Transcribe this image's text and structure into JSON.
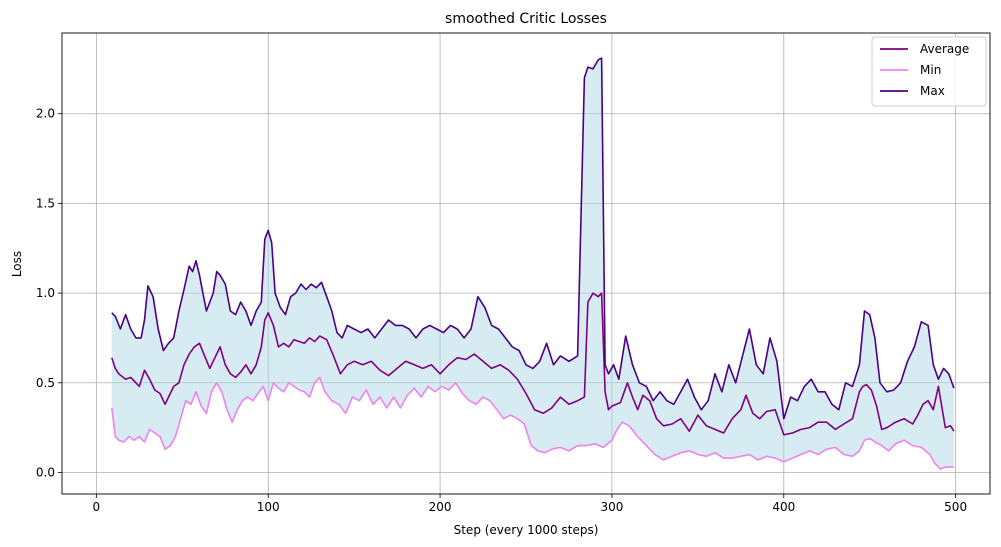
{
  "chart_data": {
    "type": "line",
    "title": "smoothed Critic Losses",
    "xlabel": "Step (every 1000 steps)",
    "ylabel": "Loss",
    "xlim": [
      -20,
      520
    ],
    "ylim": [
      -0.12,
      2.45
    ],
    "xticks": [
      0,
      100,
      200,
      300,
      400,
      500
    ],
    "yticks": [
      0.0,
      0.5,
      1.0,
      1.5,
      2.0
    ],
    "xtick_labels": [
      "0",
      "100",
      "200",
      "300",
      "400",
      "500"
    ],
    "ytick_labels": [
      "0.0",
      "0.5",
      "1.0",
      "1.5",
      "2.0"
    ],
    "grid": true,
    "legend_position": "top-right",
    "fill_between": {
      "lower": "Min",
      "upper": "Max",
      "color": "#add8e6"
    },
    "series": [
      {
        "name": "Average",
        "color": "#800080",
        "x": [
          9,
          11,
          13,
          17,
          20,
          23,
          25,
          28,
          31,
          34,
          37,
          40,
          42,
          45,
          48,
          51,
          54,
          57,
          60,
          63,
          66,
          69,
          72,
          75,
          78,
          81,
          84,
          87,
          90,
          93,
          96,
          98,
          100,
          103,
          106,
          109,
          112,
          115,
          118,
          121,
          124,
          127,
          130,
          134,
          138,
          142,
          146,
          150,
          155,
          160,
          165,
          170,
          175,
          180,
          185,
          190,
          195,
          200,
          205,
          210,
          215,
          220,
          225,
          230,
          235,
          240,
          245,
          250,
          255,
          260,
          265,
          270,
          275,
          280,
          284,
          286,
          289,
          292,
          294,
          296,
          298,
          300,
          305,
          309,
          312,
          315,
          318,
          322,
          326,
          330,
          335,
          340,
          345,
          350,
          355,
          360,
          365,
          370,
          375,
          378,
          382,
          386,
          390,
          395,
          400,
          405,
          410,
          415,
          420,
          425,
          430,
          435,
          440,
          444,
          446,
          448,
          451,
          454,
          457,
          460,
          465,
          470,
          475,
          478,
          481,
          484,
          487,
          490,
          494,
          497,
          499
        ],
        "y": [
          0.64,
          0.58,
          0.55,
          0.52,
          0.53,
          0.5,
          0.48,
          0.57,
          0.52,
          0.46,
          0.44,
          0.38,
          0.42,
          0.48,
          0.5,
          0.6,
          0.66,
          0.7,
          0.72,
          0.65,
          0.58,
          0.64,
          0.7,
          0.6,
          0.55,
          0.53,
          0.56,
          0.6,
          0.55,
          0.6,
          0.7,
          0.85,
          0.89,
          0.82,
          0.7,
          0.72,
          0.7,
          0.74,
          0.73,
          0.72,
          0.75,
          0.73,
          0.76,
          0.74,
          0.65,
          0.55,
          0.6,
          0.62,
          0.6,
          0.62,
          0.57,
          0.54,
          0.58,
          0.62,
          0.6,
          0.58,
          0.6,
          0.55,
          0.6,
          0.64,
          0.63,
          0.66,
          0.62,
          0.58,
          0.6,
          0.57,
          0.52,
          0.44,
          0.35,
          0.33,
          0.36,
          0.42,
          0.38,
          0.4,
          0.42,
          0.95,
          1.0,
          0.98,
          1.0,
          0.45,
          0.35,
          0.37,
          0.39,
          0.5,
          0.42,
          0.35,
          0.43,
          0.4,
          0.3,
          0.26,
          0.27,
          0.3,
          0.23,
          0.32,
          0.26,
          0.24,
          0.22,
          0.3,
          0.35,
          0.43,
          0.33,
          0.3,
          0.34,
          0.35,
          0.21,
          0.22,
          0.24,
          0.25,
          0.28,
          0.28,
          0.24,
          0.27,
          0.3,
          0.45,
          0.48,
          0.49,
          0.46,
          0.37,
          0.24,
          0.25,
          0.28,
          0.3,
          0.27,
          0.32,
          0.38,
          0.4,
          0.35,
          0.48,
          0.25,
          0.26,
          0.23
        ]
      },
      {
        "name": "Min",
        "color": "#ee82ee",
        "x": [
          9,
          11,
          13,
          16,
          19,
          22,
          25,
          28,
          31,
          34,
          37,
          40,
          43,
          46,
          49,
          52,
          55,
          58,
          61,
          64,
          67,
          70,
          73,
          76,
          79,
          82,
          85,
          88,
          91,
          94,
          97,
          100,
          103,
          106,
          109,
          112,
          115,
          118,
          121,
          124,
          127,
          130,
          133,
          137,
          141,
          145,
          149,
          153,
          157,
          161,
          165,
          169,
          173,
          177,
          181,
          185,
          189,
          193,
          197,
          201,
          205,
          209,
          213,
          217,
          221,
          225,
          229,
          233,
          237,
          241,
          245,
          249,
          253,
          257,
          261,
          265,
          270,
          275,
          280,
          285,
          290,
          295,
          300,
          303,
          306,
          310,
          315,
          320,
          325,
          330,
          335,
          340,
          345,
          350,
          355,
          360,
          365,
          370,
          375,
          380,
          385,
          390,
          395,
          400,
          405,
          410,
          415,
          420,
          425,
          430,
          435,
          440,
          444,
          447,
          450,
          453,
          457,
          461,
          465,
          470,
          475,
          480,
          485,
          488,
          491,
          494,
          497,
          499
        ],
        "y": [
          0.36,
          0.2,
          0.18,
          0.17,
          0.2,
          0.18,
          0.2,
          0.17,
          0.24,
          0.22,
          0.2,
          0.13,
          0.15,
          0.2,
          0.3,
          0.4,
          0.38,
          0.45,
          0.37,
          0.33,
          0.45,
          0.5,
          0.45,
          0.35,
          0.28,
          0.35,
          0.4,
          0.42,
          0.4,
          0.44,
          0.48,
          0.4,
          0.5,
          0.47,
          0.45,
          0.5,
          0.48,
          0.46,
          0.45,
          0.42,
          0.5,
          0.53,
          0.45,
          0.4,
          0.38,
          0.33,
          0.42,
          0.4,
          0.46,
          0.38,
          0.42,
          0.36,
          0.42,
          0.36,
          0.43,
          0.47,
          0.42,
          0.48,
          0.45,
          0.48,
          0.46,
          0.5,
          0.44,
          0.4,
          0.38,
          0.42,
          0.4,
          0.35,
          0.3,
          0.32,
          0.3,
          0.27,
          0.15,
          0.12,
          0.11,
          0.13,
          0.14,
          0.12,
          0.15,
          0.15,
          0.16,
          0.14,
          0.18,
          0.24,
          0.28,
          0.26,
          0.2,
          0.15,
          0.1,
          0.07,
          0.09,
          0.11,
          0.12,
          0.1,
          0.09,
          0.11,
          0.08,
          0.08,
          0.09,
          0.1,
          0.07,
          0.09,
          0.08,
          0.06,
          0.08,
          0.1,
          0.12,
          0.1,
          0.13,
          0.14,
          0.1,
          0.09,
          0.12,
          0.18,
          0.19,
          0.17,
          0.15,
          0.12,
          0.16,
          0.18,
          0.15,
          0.14,
          0.1,
          0.05,
          0.02,
          0.03,
          0.03,
          0.03
        ]
      },
      {
        "name": "Max",
        "color": "#4b0082",
        "x": [
          9,
          11,
          14,
          17,
          20,
          23,
          26,
          28,
          30,
          33,
          36,
          39,
          42,
          45,
          48,
          51,
          54,
          56,
          58,
          60,
          62,
          64,
          66,
          68,
          70,
          72,
          75,
          78,
          81,
          84,
          87,
          90,
          93,
          96,
          98,
          100,
          102,
          104,
          107,
          110,
          113,
          116,
          119,
          122,
          125,
          128,
          131,
          134,
          137,
          140,
          143,
          146,
          150,
          154,
          158,
          162,
          166,
          170,
          174,
          178,
          182,
          186,
          190,
          194,
          198,
          202,
          206,
          210,
          214,
          218,
          222,
          226,
          230,
          234,
          238,
          242,
          246,
          250,
          254,
          258,
          262,
          266,
          270,
          275,
          280,
          284,
          286,
          289,
          292,
          294,
          296,
          298,
          301,
          304,
          308,
          312,
          316,
          320,
          324,
          328,
          332,
          336,
          340,
          344,
          348,
          352,
          356,
          360,
          364,
          368,
          372,
          376,
          380,
          384,
          388,
          392,
          396,
          400,
          404,
          408,
          412,
          416,
          420,
          424,
          428,
          432,
          436,
          440,
          444,
          447,
          450,
          453,
          456,
          460,
          464,
          468,
          472,
          476,
          480,
          484,
          487,
          490,
          493,
          496,
          499
        ],
        "y": [
          0.89,
          0.87,
          0.8,
          0.88,
          0.8,
          0.75,
          0.75,
          0.85,
          1.04,
          0.98,
          0.8,
          0.68,
          0.72,
          0.75,
          0.9,
          1.02,
          1.15,
          1.12,
          1.18,
          1.1,
          1.0,
          0.9,
          0.95,
          1.0,
          1.12,
          1.1,
          1.05,
          0.9,
          0.88,
          0.95,
          0.9,
          0.82,
          0.9,
          0.95,
          1.3,
          1.35,
          1.28,
          1.0,
          0.92,
          0.88,
          0.98,
          1.0,
          1.05,
          1.02,
          1.05,
          1.03,
          1.06,
          0.98,
          0.9,
          0.78,
          0.75,
          0.82,
          0.8,
          0.78,
          0.8,
          0.75,
          0.8,
          0.85,
          0.82,
          0.82,
          0.8,
          0.75,
          0.8,
          0.82,
          0.8,
          0.78,
          0.82,
          0.8,
          0.75,
          0.8,
          0.98,
          0.92,
          0.82,
          0.8,
          0.75,
          0.7,
          0.68,
          0.6,
          0.58,
          0.62,
          0.72,
          0.6,
          0.65,
          0.62,
          0.65,
          2.2,
          2.26,
          2.25,
          2.3,
          2.31,
          0.6,
          0.55,
          0.6,
          0.52,
          0.76,
          0.6,
          0.5,
          0.48,
          0.4,
          0.45,
          0.4,
          0.38,
          0.45,
          0.52,
          0.42,
          0.35,
          0.4,
          0.55,
          0.45,
          0.6,
          0.5,
          0.65,
          0.8,
          0.6,
          0.55,
          0.75,
          0.62,
          0.3,
          0.42,
          0.4,
          0.48,
          0.52,
          0.45,
          0.45,
          0.38,
          0.35,
          0.5,
          0.48,
          0.6,
          0.9,
          0.88,
          0.75,
          0.5,
          0.45,
          0.46,
          0.5,
          0.62,
          0.7,
          0.84,
          0.82,
          0.6,
          0.52,
          0.58,
          0.55,
          0.47
        ]
      }
    ]
  }
}
